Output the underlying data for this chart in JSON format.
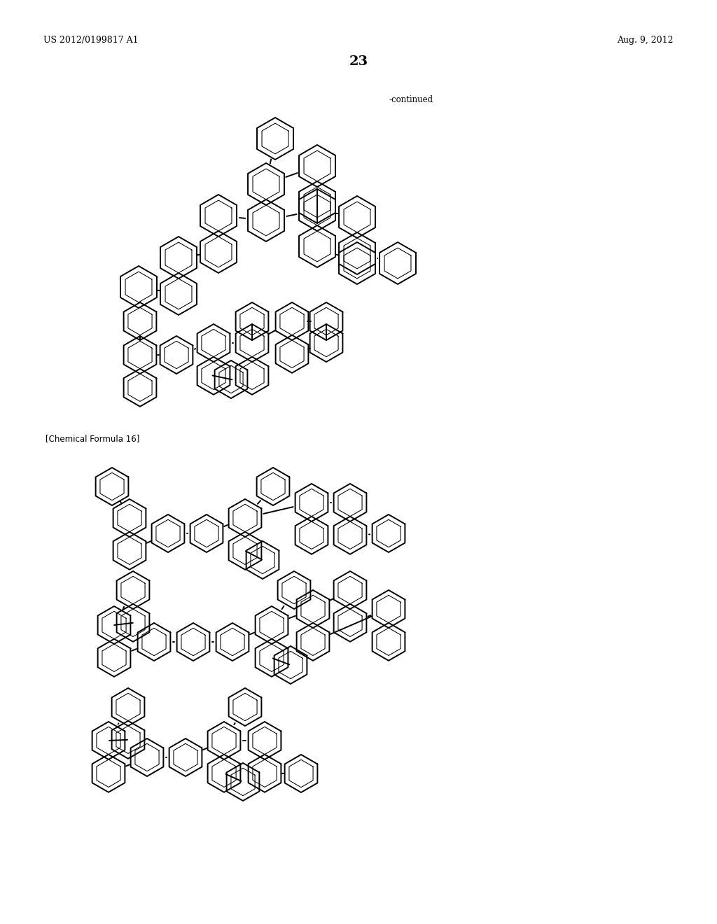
{
  "page_header_left": "US 2012/0199817 A1",
  "page_header_right": "Aug. 9, 2012",
  "page_number": "23",
  "continued_label": "-continued",
  "chemical_formula_label": "[Chemical Formula 16]",
  "bg_color": "#ffffff",
  "line_color": "#000000",
  "font_size_header": 9,
  "font_size_page_num": 14,
  "font_size_label": 8.5
}
